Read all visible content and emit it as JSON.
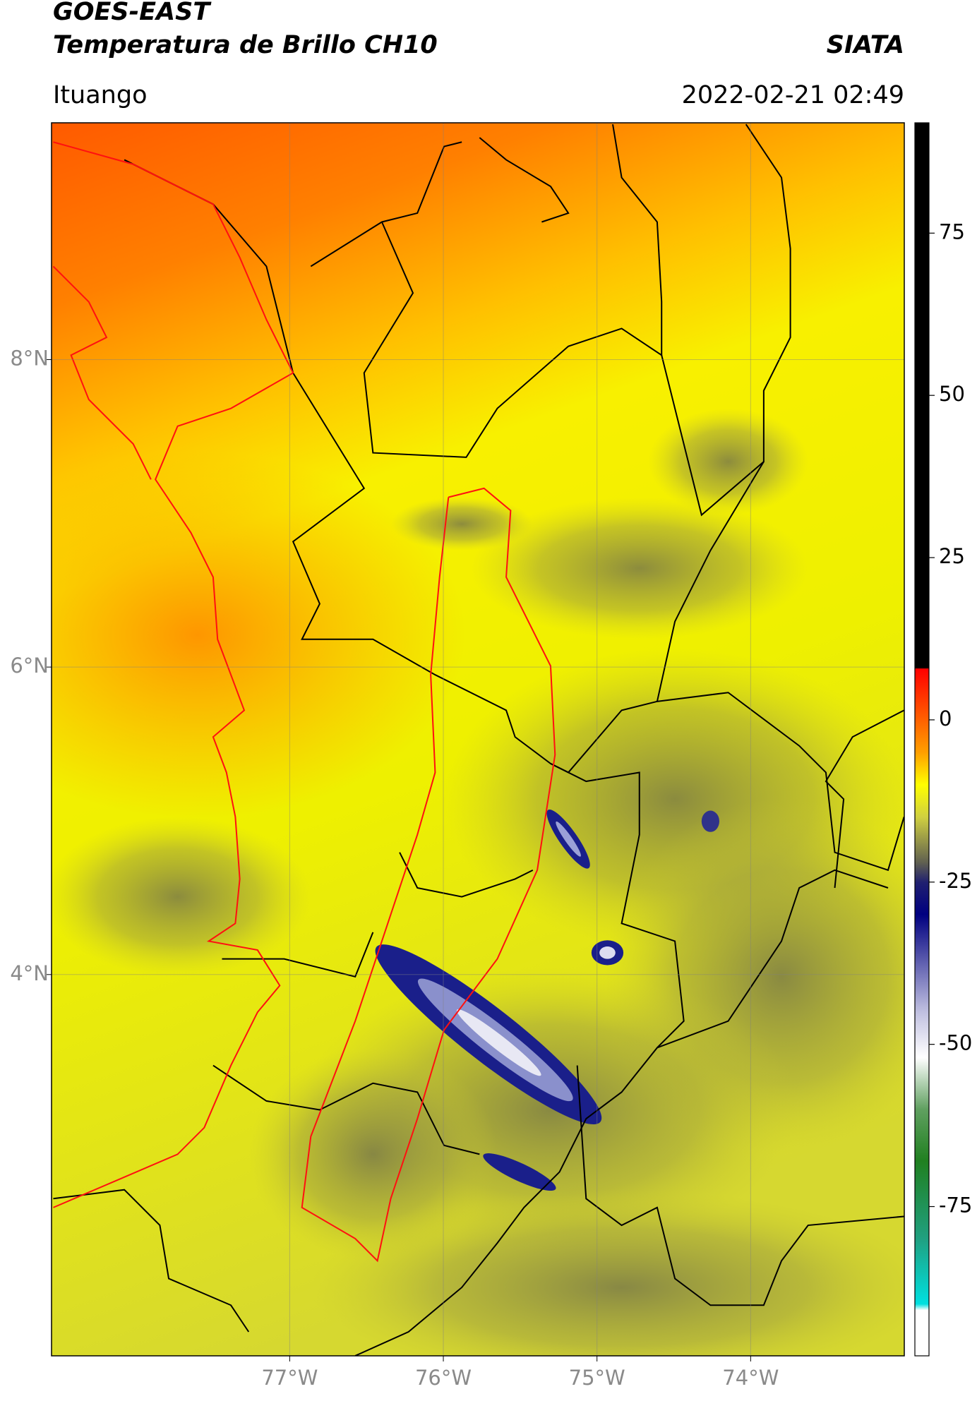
{
  "chart_data": {
    "type": "map",
    "title": "GOES-EAST",
    "subtitle": "Temperatura de Brillo CH10",
    "source": "SIATA",
    "location": "Ituango",
    "datetime": "2022-02-21 02:49",
    "xlim": [
      -78.55,
      -73.0
    ],
    "ylim": [
      1.52,
      9.54
    ],
    "xticks": [
      {
        "value": -77,
        "label": "77°W"
      },
      {
        "value": -76,
        "label": "76°W"
      },
      {
        "value": -75,
        "label": "75°W"
      },
      {
        "value": -74,
        "label": "74°W"
      }
    ],
    "yticks": [
      {
        "value": 8,
        "label": "8°N"
      },
      {
        "value": 6,
        "label": "6°N"
      },
      {
        "value": 4,
        "label": "4°N"
      }
    ],
    "grid": true,
    "colorbar": {
      "lim": [
        -98,
        92
      ],
      "ticks": [
        75,
        50,
        25,
        0,
        -25,
        -50,
        -75
      ]
    }
  }
}
